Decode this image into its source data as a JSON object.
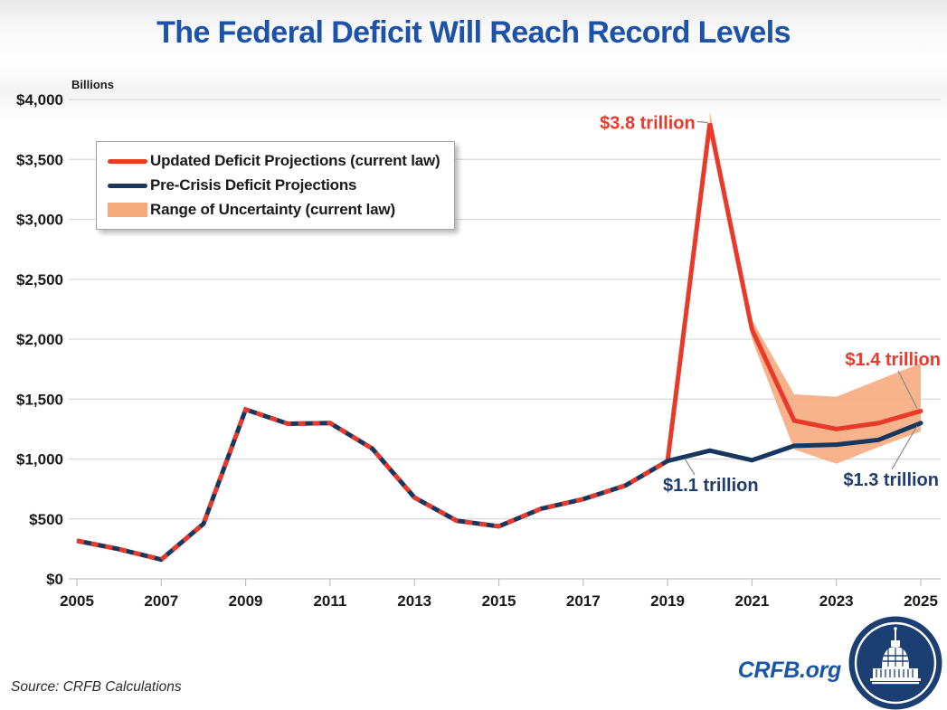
{
  "title": "The Federal Deficit Will Reach Record Levels",
  "axis_unit_label": "Billions",
  "source": "Source: CRFB Calculations",
  "branding": {
    "site": "CRFB.org",
    "logo": "us-capitol-dome-logo"
  },
  "colors": {
    "title_blue": "#1c52a8",
    "updated_red": "#e8392b",
    "precrisis_navy": "#17375e",
    "uncertainty_orange": "#f6a97b",
    "gridline_gray": "#d9d9d9",
    "annotation_navy": "#1e3c6e",
    "connector_gray": "#8a8a8a"
  },
  "legend": {
    "items": [
      {
        "label": "Updated Deficit Projections (current law)",
        "swatch": "red-line"
      },
      {
        "label": "Pre-Crisis Deficit Projections",
        "swatch": "navy-line"
      },
      {
        "label": "Range of Uncertainty (current law)",
        "swatch": "orange-area"
      }
    ]
  },
  "chart_data": {
    "type": "line",
    "title": "The Federal Deficit Will Reach Record Levels",
    "ylabel": "Billions",
    "xlabel": "",
    "ylim": [
      0,
      4000
    ],
    "ytick_step": 500,
    "ytick_labels": [
      "$0",
      "$500",
      "$1,000",
      "$1,500",
      "$2,000",
      "$2,500",
      "$3,000",
      "$3,500",
      "$4,000"
    ],
    "xlim": [
      2005,
      2025
    ],
    "xticks": [
      2005,
      2007,
      2009,
      2011,
      2013,
      2015,
      2017,
      2019,
      2021,
      2023,
      2025
    ],
    "grid": true,
    "legend_position": "upper-left",
    "series": [
      {
        "id": "historical",
        "name": "Historical deficits (red and navy lines overlap, shown as alternating dashes)",
        "style": "dashed-two-color",
        "colors": [
          "#17375e",
          "#e8392b"
        ],
        "x": [
          2005,
          2006,
          2007,
          2008,
          2009,
          2010,
          2011,
          2012,
          2013,
          2014,
          2015,
          2016,
          2017,
          2018,
          2019
        ],
        "values": [
          318,
          248,
          161,
          459,
          1413,
          1294,
          1300,
          1087,
          679,
          485,
          438,
          585,
          665,
          779,
          984
        ]
      },
      {
        "id": "updated",
        "name": "Updated Deficit Projections (current law)",
        "style": "solid",
        "color": "#e8392b",
        "x": [
          2019,
          2020,
          2021,
          2022,
          2023,
          2024,
          2025
        ],
        "values": [
          984,
          3800,
          2080,
          1320,
          1250,
          1300,
          1400
        ]
      },
      {
        "id": "precrisis",
        "name": "Pre-Crisis Deficit Projections",
        "style": "solid",
        "color": "#17375e",
        "x": [
          2019,
          2020,
          2021,
          2022,
          2023,
          2024,
          2025
        ],
        "values": [
          984,
          1070,
          990,
          1110,
          1120,
          1160,
          1300
        ]
      }
    ],
    "band": {
      "id": "uncertainty",
      "name": "Range of Uncertainty (current law)",
      "color": "#f6a97b",
      "x": [
        2020,
        2021,
        2022,
        2023,
        2024,
        2025
      ],
      "upper": [
        3900,
        2160,
        1540,
        1520,
        1660,
        1800
      ],
      "lower": [
        3740,
        2000,
        1080,
        960,
        1100,
        1230
      ]
    },
    "annotations": [
      {
        "id": "peak",
        "text": "$3.8 trillion",
        "color": "#e8392b",
        "series": "updated",
        "year": 2020,
        "value": 3800
      },
      {
        "id": "red-end",
        "text": "$1.4 trillion",
        "color": "#e8392b",
        "series": "updated",
        "year": 2025,
        "value": 1400
      },
      {
        "id": "navy-2020",
        "text": "$1.1 trillion",
        "color": "#1e3c6e",
        "series": "precrisis",
        "year": 2020,
        "value": 1070
      },
      {
        "id": "navy-end",
        "text": "$1.3 trillion",
        "color": "#1e3c6e",
        "series": "precrisis",
        "year": 2025,
        "value": 1300
      }
    ]
  }
}
